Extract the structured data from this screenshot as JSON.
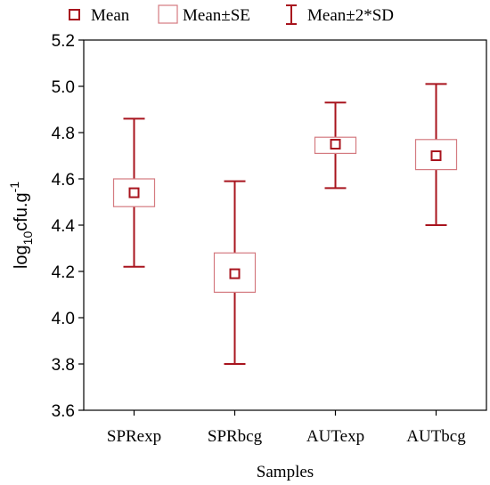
{
  "chart_data": {
    "type": "boxplot",
    "xlabel": "Samples",
    "ylabel": {
      "main": "log",
      "sub": "10",
      "rest": "cfu.g",
      "sup": "-1"
    },
    "ylim": [
      3.6,
      5.2
    ],
    "yticks": [
      "3.6",
      "3.8",
      "4.0",
      "4.2",
      "4.4",
      "4.6",
      "4.8",
      "5.0",
      "5.2"
    ],
    "categories": [
      "SPRexp",
      "SPRbcg",
      "AUTexp",
      "AUTbcg"
    ],
    "series": [
      {
        "name": "SPRexp",
        "mean": 4.54,
        "se_low": 4.48,
        "se_high": 4.6,
        "sd_low": 4.22,
        "sd_high": 4.86
      },
      {
        "name": "SPRbcg",
        "mean": 4.19,
        "se_low": 4.11,
        "se_high": 4.28,
        "sd_low": 3.8,
        "sd_high": 4.59
      },
      {
        "name": "AUTexp",
        "mean": 4.75,
        "se_low": 4.71,
        "se_high": 4.78,
        "sd_low": 4.56,
        "sd_high": 4.93
      },
      {
        "name": "AUTbcg",
        "mean": 4.7,
        "se_low": 4.64,
        "se_high": 4.77,
        "sd_low": 4.4,
        "sd_high": 5.01
      }
    ],
    "legend": {
      "position": "top",
      "items": [
        "Mean",
        "Mean±SE",
        "Mean±2*SD"
      ]
    },
    "grid": false,
    "colors": {
      "mean_marker": "#a8141e",
      "se_box": "#d47a80",
      "whisker": "#a8141e",
      "axis": "#000000"
    }
  }
}
